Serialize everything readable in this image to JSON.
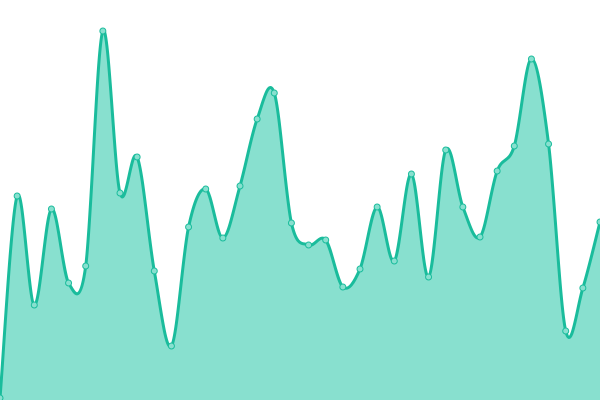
{
  "chart_data": {
    "type": "area",
    "values": [
      2,
      204,
      95,
      191,
      117,
      134,
      369,
      207,
      243,
      129,
      54,
      173,
      211,
      162,
      214,
      281,
      307,
      177,
      155,
      160,
      113,
      131,
      193,
      139,
      226,
      123,
      250,
      193,
      163,
      229,
      254,
      341,
      256,
      69,
      112,
      178
    ],
    "ylim": [
      0,
      400
    ],
    "color": "#1abc9c",
    "fill": "#88e0cf"
  }
}
